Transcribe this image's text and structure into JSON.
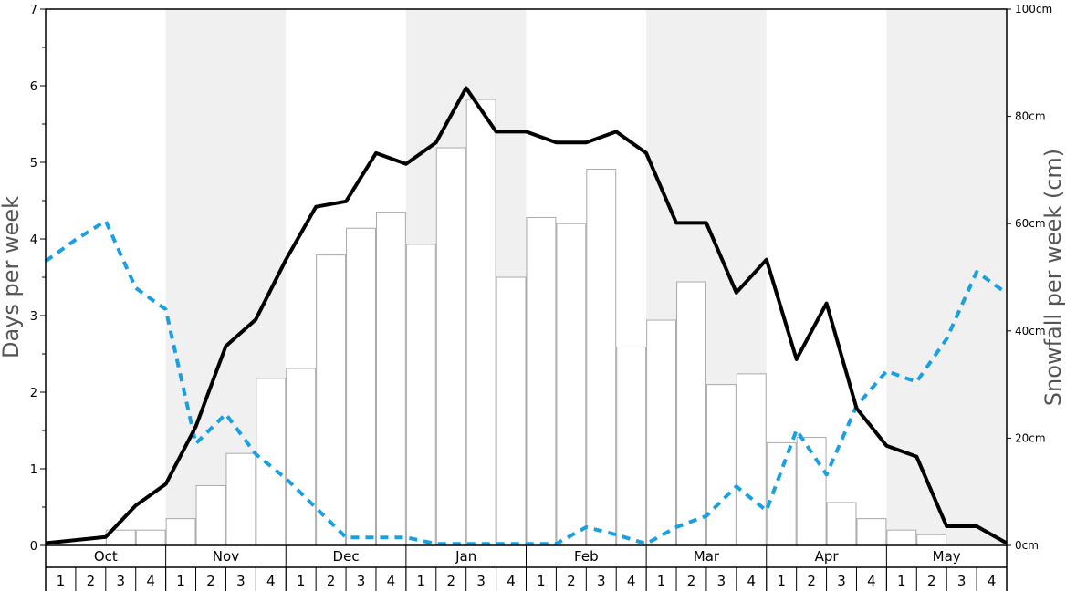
{
  "chart_data": {
    "type": "bar",
    "title": "",
    "ylabel_left": "Days per week",
    "ylabel_right": "Snowfall per week (cm)",
    "ylim_left": [
      0,
      7
    ],
    "left_ticks": [
      "0",
      "1",
      "2",
      "3",
      "4",
      "5",
      "6",
      "7"
    ],
    "ylim_right": [
      0,
      100
    ],
    "right_ticks": [
      "0cm",
      "20cm",
      "40cm",
      "60cm",
      "80cm",
      "100cm"
    ],
    "months": [
      "Oct",
      "Nov",
      "Dec",
      "Jan",
      "Feb",
      "Mar",
      "Apr",
      "May"
    ],
    "week_labels": [
      "1",
      "2",
      "3",
      "4"
    ],
    "colors": {
      "shade": "#f0f0f0",
      "bar_fill": "#ffffff",
      "bar_stroke": "#aaaaaa",
      "line_solid": "#000000",
      "line_dashed": "#1a9fe0"
    },
    "bars": {
      "name": "",
      "axis": "left",
      "values": [
        0,
        0,
        0.2,
        0.2,
        0.35,
        0.78,
        1.2,
        2.18,
        2.31,
        3.79,
        4.14,
        4.35,
        3.93,
        5.19,
        5.82,
        3.5,
        4.28,
        4.2,
        4.91,
        2.59,
        2.94,
        3.44,
        2.1,
        2.24,
        1.34,
        1.41,
        0.56,
        0.35,
        0.2,
        0.14,
        0,
        0
      ]
    },
    "line_solid": {
      "name": "",
      "axis": "left",
      "values": [
        0.03,
        0.07,
        0.11,
        0.52,
        0.8,
        1.55,
        2.6,
        2.95,
        3.73,
        4.42,
        4.49,
        5.12,
        4.98,
        5.26,
        5.97,
        5.4,
        5.4,
        5.26,
        5.26,
        5.4,
        5.12,
        4.21,
        4.21,
        3.3,
        3.73,
        2.43,
        3.16,
        1.79,
        1.3,
        1.16,
        0.25,
        0.25,
        0.03
      ]
    },
    "line_dashed": {
      "name": "",
      "axis": "right",
      "values": [
        53,
        57,
        60.5,
        48,
        44,
        19,
        24.5,
        17,
        12.5,
        7,
        1.5,
        1.5,
        1.5,
        0.3,
        0.3,
        0.3,
        0.3,
        0.3,
        3.4,
        2,
        0.3,
        3.4,
        5.5,
        11,
        6.5,
        21.5,
        13.2,
        26,
        32.5,
        30.5,
        38.5,
        51,
        47
      ]
    }
  }
}
